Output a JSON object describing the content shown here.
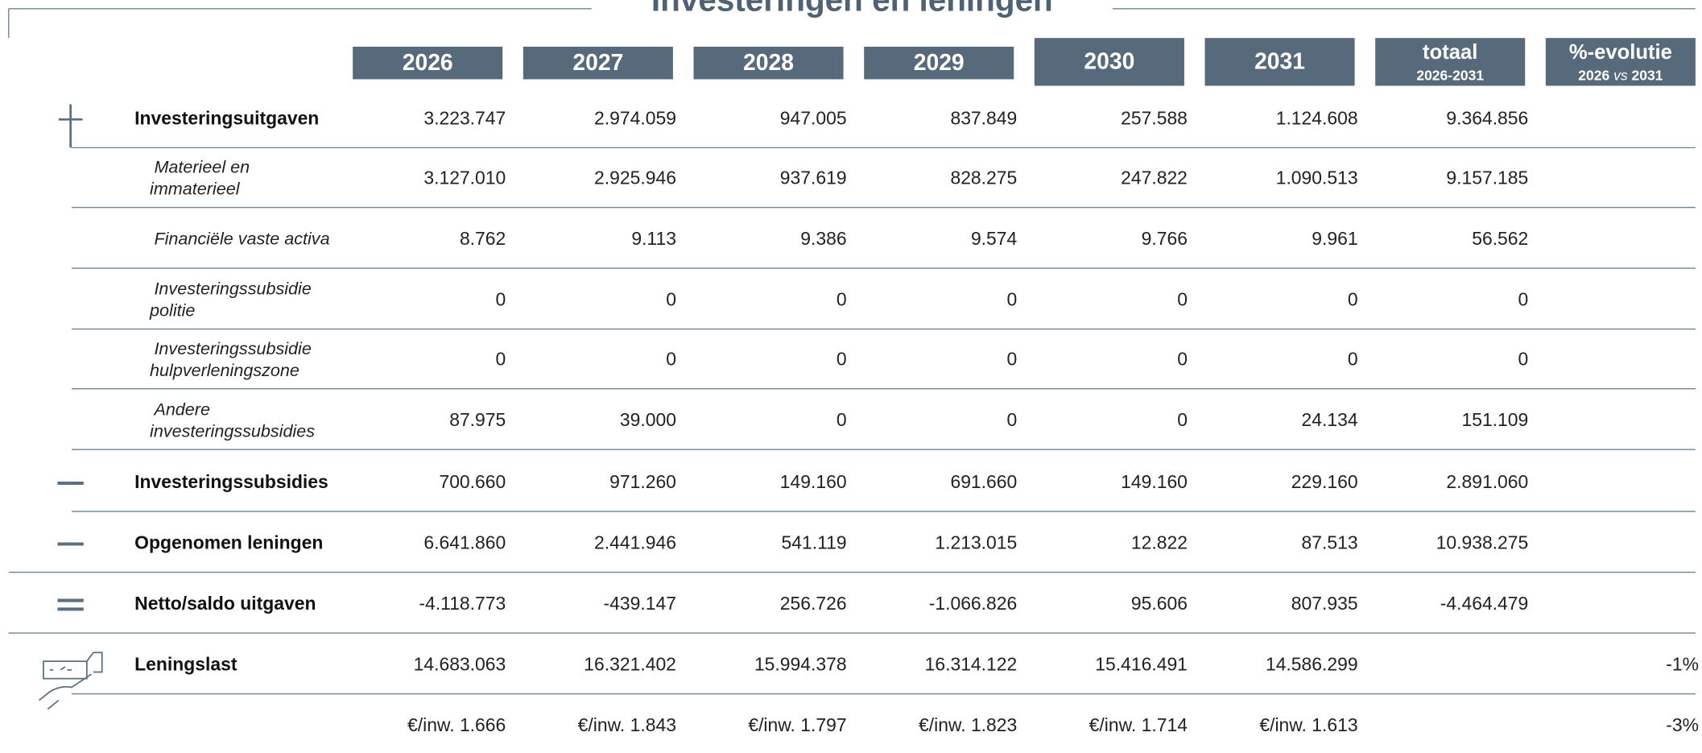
{
  "header": {
    "title": "Investeringen en leningen"
  },
  "table": {
    "columns": [
      {
        "label": "2026"
      },
      {
        "label": "2027"
      },
      {
        "label": "2028"
      },
      {
        "label": "2029"
      },
      {
        "label": "2030"
      },
      {
        "label": "2031"
      },
      {
        "label": "totaal",
        "sub": [
          "2026-2031"
        ]
      },
      {
        "label": "%-evolutie",
        "sub": [
          "2026 ",
          "vs",
          " 2031"
        ]
      }
    ],
    "rows": [
      {
        "label": [
          "Investeringsuitgaven"
        ],
        "style": "bold",
        "icon": "plus",
        "values": [
          "3.223.747",
          "2.974.059",
          "947.005",
          "837.849",
          "257.588",
          "1.124.608",
          "9.364.856",
          null
        ]
      },
      {
        "label": [
          "Materieel en",
          "immaterieel"
        ],
        "style": "italic",
        "values": [
          "3.127.010",
          "2.925.946",
          "937.619",
          "828.275",
          "247.822",
          "1.090.513",
          "9.157.185",
          null
        ]
      },
      {
        "label": [
          "Financiële vaste activa"
        ],
        "style": "italic",
        "values": [
          "8.762",
          "9.113",
          "9.386",
          "9.574",
          "9.766",
          "9.961",
          "56.562",
          null
        ]
      },
      {
        "label": [
          "Investeringssubsidie",
          "politie"
        ],
        "style": "italic",
        "values": [
          "0",
          "0",
          "0",
          "0",
          "0",
          "0",
          "0",
          null
        ]
      },
      {
        "label": [
          "Investeringssubsidie",
          "hulpverleningszone"
        ],
        "style": "italic",
        "values": [
          "0",
          "0",
          "0",
          "0",
          "0",
          "0",
          "0",
          null
        ]
      },
      {
        "label": [
          "Andere",
          "investeringssubsidies"
        ],
        "style": "italic",
        "values": [
          "87.975",
          "39.000",
          "0",
          "0",
          "0",
          "24.134",
          "151.109",
          null
        ]
      },
      {
        "label": [
          "Investeringssubsidies"
        ],
        "style": "bold",
        "icon": "minus",
        "values": [
          "700.660",
          "971.260",
          "149.160",
          "691.660",
          "149.160",
          "229.160",
          "2.891.060",
          null
        ]
      },
      {
        "label": [
          "Opgenomen leningen"
        ],
        "style": "bold",
        "icon": "minus",
        "values": [
          "6.641.860",
          "2.441.946",
          "541.119",
          "1.213.015",
          "12.822",
          "87.513",
          "10.938.275",
          null
        ]
      },
      {
        "label": [
          "Netto/saldo uitgaven"
        ],
        "style": "bold",
        "icon": "equals",
        "values": [
          "-4.118.773",
          "-439.147",
          "256.726",
          "-1.066.826",
          "95.606",
          "807.935",
          "-4.464.479",
          null
        ]
      },
      {
        "label": [
          "Leningslast"
        ],
        "style": "bold",
        "icon": "hand",
        "values": [
          "14.683.063",
          "16.321.402",
          "15.994.378",
          "16.314.122",
          "15.416.491",
          "14.586.299",
          null,
          "-1%"
        ]
      },
      {
        "values": [
          "€/inw. 1.666",
          "€/inw. 1.843",
          "€/inw. 1.797",
          "€/inw. 1.823",
          "€/inw. 1.714",
          "€/inw. 1.613",
          null,
          "-3%"
        ]
      }
    ]
  }
}
